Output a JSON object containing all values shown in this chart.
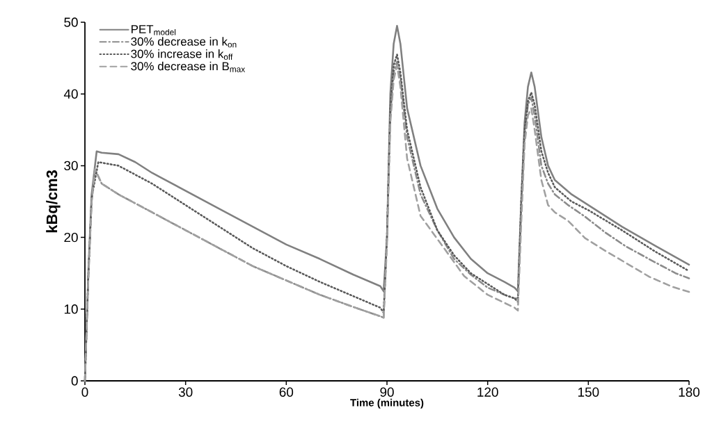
{
  "chart_data": {
    "type": "line",
    "xlabel": "Time (minutes)",
    "ylabel": "kBq/cm3",
    "xlim": [
      0,
      180
    ],
    "ylim": [
      0,
      50
    ],
    "xticks": [
      0,
      30,
      60,
      90,
      120,
      150,
      180
    ],
    "yticks": [
      0,
      10,
      20,
      30,
      40,
      50
    ],
    "grid": false,
    "legend": "top left",
    "series": [
      {
        "name": "PET$_{model}$",
        "color": "#808080",
        "line_style": "solid",
        "x": [
          0,
          1,
          2,
          3.5,
          5,
          10,
          15,
          20,
          30,
          40,
          50,
          60,
          70,
          80,
          88,
          89,
          90,
          91,
          92,
          93,
          94,
          96,
          100,
          105,
          110,
          115,
          120,
          125,
          128,
          129,
          130,
          131,
          132,
          133,
          134,
          136,
          138,
          140,
          145,
          150,
          160,
          170,
          180
        ],
        "values": [
          0,
          15,
          26,
          32,
          31.8,
          31.6,
          30.5,
          29,
          26.5,
          24,
          21.5,
          19,
          17,
          14.8,
          13.2,
          12.5,
          20,
          40,
          47,
          49.5,
          47,
          38,
          30,
          24,
          20,
          17,
          15,
          13.8,
          13,
          12.5,
          25,
          36,
          41,
          43,
          41,
          34,
          30,
          28,
          26,
          24.5,
          21.5,
          18.8,
          16.2
        ]
      },
      {
        "name": "30% decrease in k$_{on}$",
        "color": "#8c8c8c",
        "line_style": "dashdot",
        "x": [
          0,
          1,
          2,
          3,
          5,
          10,
          20,
          30,
          40,
          50,
          60,
          70,
          80,
          88,
          89,
          90,
          91,
          92,
          93,
          94,
          96,
          100,
          105,
          110,
          115,
          120,
          125,
          128,
          129,
          130,
          131,
          132,
          133,
          134,
          136,
          138,
          140,
          144,
          149,
          155,
          161,
          168,
          176,
          180
        ],
        "values": [
          0,
          14,
          25,
          29.5,
          27.5,
          26,
          23.5,
          21,
          18.5,
          16,
          14,
          12,
          10.3,
          9,
          8.8,
          20,
          37,
          43,
          44.5,
          42,
          34,
          26,
          21,
          17,
          14.8,
          13,
          12,
          11.5,
          11.5,
          24,
          34,
          38.5,
          39.5,
          37,
          30,
          27.5,
          26,
          24.5,
          22.9,
          20.7,
          18.8,
          17,
          15,
          14.3
        ]
      },
      {
        "name": "30% increase in k$_{off}$",
        "color": "#595959",
        "line_style": "dotted",
        "x": [
          0,
          1,
          2,
          4,
          10,
          20,
          30,
          40,
          50,
          60,
          70,
          80,
          88,
          89,
          90,
          91,
          92,
          93,
          94,
          96,
          100,
          105,
          110,
          115,
          120,
          125,
          128,
          129,
          130,
          131,
          132,
          133,
          134,
          136,
          138,
          140,
          145,
          150,
          160,
          170,
          180
        ],
        "values": [
          0,
          14.5,
          25.5,
          30.5,
          30,
          27.5,
          24.5,
          21.5,
          18.5,
          16,
          13.8,
          11.8,
          10.2,
          9.5,
          20,
          38,
          44,
          45.5,
          43,
          35,
          27,
          21,
          17.5,
          15,
          13.5,
          12,
          11.5,
          11,
          25,
          35,
          39,
          40.2,
          38.5,
          32,
          29,
          27,
          25,
          23.8,
          21,
          18,
          15.3
        ]
      },
      {
        "name": "30% decrease in B$_{max}$",
        "color": "#a0a0a0",
        "line_style": "dashed",
        "x": [
          0,
          1,
          2,
          3,
          5,
          10,
          20,
          30,
          40,
          50,
          60,
          70,
          80,
          88,
          89,
          90,
          91,
          92,
          93,
          94,
          96,
          100,
          107,
          113,
          120,
          124,
          128,
          129,
          130,
          131,
          132,
          133,
          134,
          136,
          138,
          140,
          144,
          149,
          155.5,
          161.7,
          168.2,
          175.1,
          180
        ],
        "values": [
          0,
          14,
          25,
          29.5,
          27.5,
          26,
          23.5,
          21,
          18.5,
          16,
          14,
          12,
          10.3,
          9,
          8.8,
          19,
          36,
          42,
          44,
          41,
          31,
          23,
          18.5,
          14.6,
          12,
          11.1,
          10.2,
          9.8,
          22,
          33,
          37,
          38,
          35,
          28,
          24.5,
          23.5,
          22.3,
          19.9,
          18,
          16.3,
          14.5,
          13.1,
          12.4
        ]
      }
    ]
  }
}
